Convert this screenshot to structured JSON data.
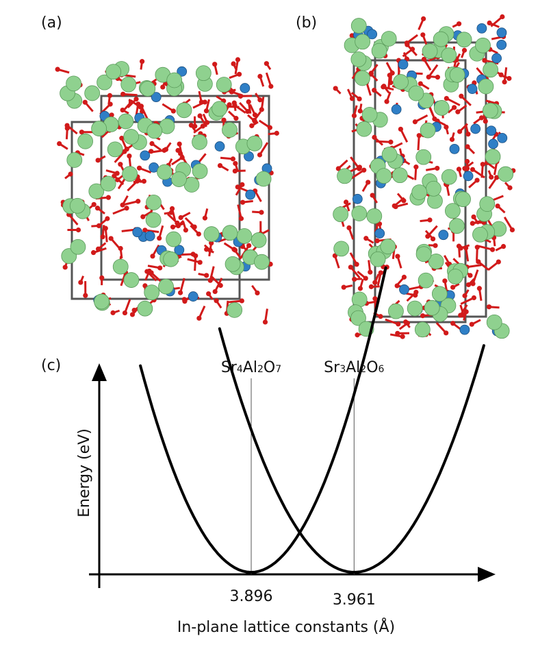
{
  "panels": {
    "a": {
      "label": "(a)"
    },
    "b": {
      "label": "(b)"
    },
    "c": {
      "label": "(c)"
    }
  },
  "colors": {
    "strontium": "#8fd18f",
    "aluminum": "#2f7fc6",
    "oxygen": "#d11a1a",
    "cell_edge": "#555555",
    "curve": "#000000"
  },
  "chart_data": {
    "type": "line",
    "title": "",
    "xlabel": "In-plane lattice constants (Å)",
    "ylabel": "Energy (eV)",
    "x_ticks": [
      "3.896",
      "3.961"
    ],
    "phase_labels": [
      {
        "main1": "Sr",
        "sub1": "4",
        "main2": "Al",
        "sub2": "2",
        "main3": "O",
        "sub3": "7",
        "x": 3.896
      },
      {
        "main1": "Sr",
        "sub1": "3",
        "main2": "Al",
        "sub2": "2",
        "main3": "O",
        "sub3": "6",
        "x": 3.961
      }
    ],
    "xlim": [
      3.8,
      4.04
    ],
    "ylim": [
      0,
      1.0
    ],
    "series": [
      {
        "minimum_x": 3.896,
        "x_range": [
          3.826,
          3.981
        ],
        "values_note": ""
      },
      {
        "minimum_x": 3.961,
        "x_range": [
          3.876,
          4.043
        ],
        "values_note": ""
      }
    ],
    "grid": false
  }
}
